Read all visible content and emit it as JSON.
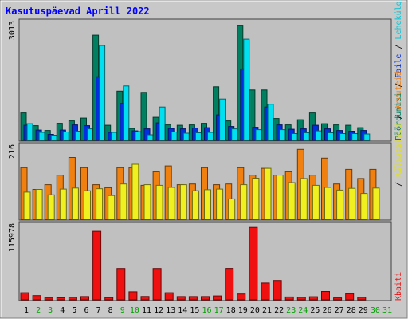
{
  "chart_data": {
    "type": "bar",
    "title": "Kasutuspäevad Aprill 2022",
    "categories": [
      "1",
      "2",
      "3",
      "4",
      "5",
      "6",
      "7",
      "8",
      "9",
      "10",
      "11",
      "12",
      "13",
      "14",
      "15",
      "16",
      "17",
      "18",
      "19",
      "20",
      "21",
      "22",
      "23",
      "24",
      "25",
      "26",
      "27",
      "28",
      "29",
      "30",
      "31"
    ],
    "weekend_days": [
      "2",
      "3",
      "9",
      "10",
      "16",
      "17",
      "23",
      "24",
      "30",
      "31"
    ],
    "panels": [
      {
        "name": "top",
        "max_label": "3013",
        "ylim": [
          0,
          3013
        ],
        "side_label": {
          "parts": [
            "Pöördumisi",
            "Faile",
            "Lehekülgi"
          ],
          "separator": " / "
        },
        "series": [
          {
            "name": "Pöördumisi",
            "color": "#008060",
            "values": [
              690,
              370,
              250,
              430,
              490,
              560,
              2650,
              380,
              1240,
              300,
              1210,
              580,
              390,
              380,
              390,
              430,
              1350,
              490,
              2900,
              1270,
              1270,
              550,
              390,
              520,
              690,
              420,
              390,
              380,
              320,
              0,
              0
            ]
          },
          {
            "name": "Faile",
            "color": "#0030E0",
            "values": [
              380,
              260,
              150,
              260,
              390,
              370,
              1600,
              200,
              930,
              240,
              290,
              440,
              300,
              290,
              310,
              320,
              640,
              350,
              1800,
              330,
              840,
              390,
              280,
              290,
              380,
              290,
              250,
              230,
              250,
              0,
              0
            ]
          },
          {
            "name": "Lehekülgi",
            "color": "#00E0F0",
            "values": [
              420,
              200,
              130,
              210,
              230,
              290,
              2390,
              200,
              1370,
              220,
              140,
              840,
              210,
              180,
              190,
              200,
              1040,
              290,
              2550,
              270,
              910,
              270,
              170,
              190,
              240,
              190,
              170,
              170,
              160,
              0,
              0
            ]
          }
        ]
      },
      {
        "name": "middle",
        "max_label": "216",
        "ylim": [
          0,
          216
        ],
        "side_label": {
          "parts": [
            "Kbaiti",
            "Külastajaid",
            "Arvuteid"
          ],
          "separator": " / "
        },
        "series": [
          {
            "name": "Arvuteid",
            "color": "#F08010",
            "values": [
              152,
              88,
              102,
              130,
              182,
              152,
              102,
              93,
              152,
              152,
              100,
              140,
              157,
              102,
              104,
              152,
              102,
              104,
              152,
              130,
              150,
              130,
              140,
              206,
              130,
              180,
              104,
              147,
              120,
              147,
              0
            ]
          },
          {
            "name": "Külastajaid",
            "color": "#F0F020",
            "values": [
              80,
              88,
              72,
              89,
              92,
              84,
              90,
              70,
              104,
              162,
              102,
              100,
              94,
              102,
              84,
              87,
              89,
              60,
              102,
              121,
              150,
              130,
              108,
              120,
              100,
              94,
              86,
              91,
              76,
              92,
              0
            ]
          }
        ]
      },
      {
        "name": "bottom",
        "max_label": "115978",
        "ylim": [
          0,
          115978
        ],
        "side_label": {
          "parts": [
            "Kbaiti"
          ],
          "separator": ""
        },
        "series": [
          {
            "name": "Kbaiti",
            "color": "#F01010",
            "values": [
              11000,
              6500,
              3000,
              3200,
              4000,
              5000,
              106000,
              3500,
              48500,
              12500,
              5200,
              48500,
              11000,
              5000,
              5000,
              5000,
              6000,
              48600,
              9000,
              112000,
              26000,
              30000,
              4500,
              4000,
              4800,
              13000,
              3000,
              9500,
              4000,
              0,
              0
            ]
          }
        ]
      }
    ]
  }
}
